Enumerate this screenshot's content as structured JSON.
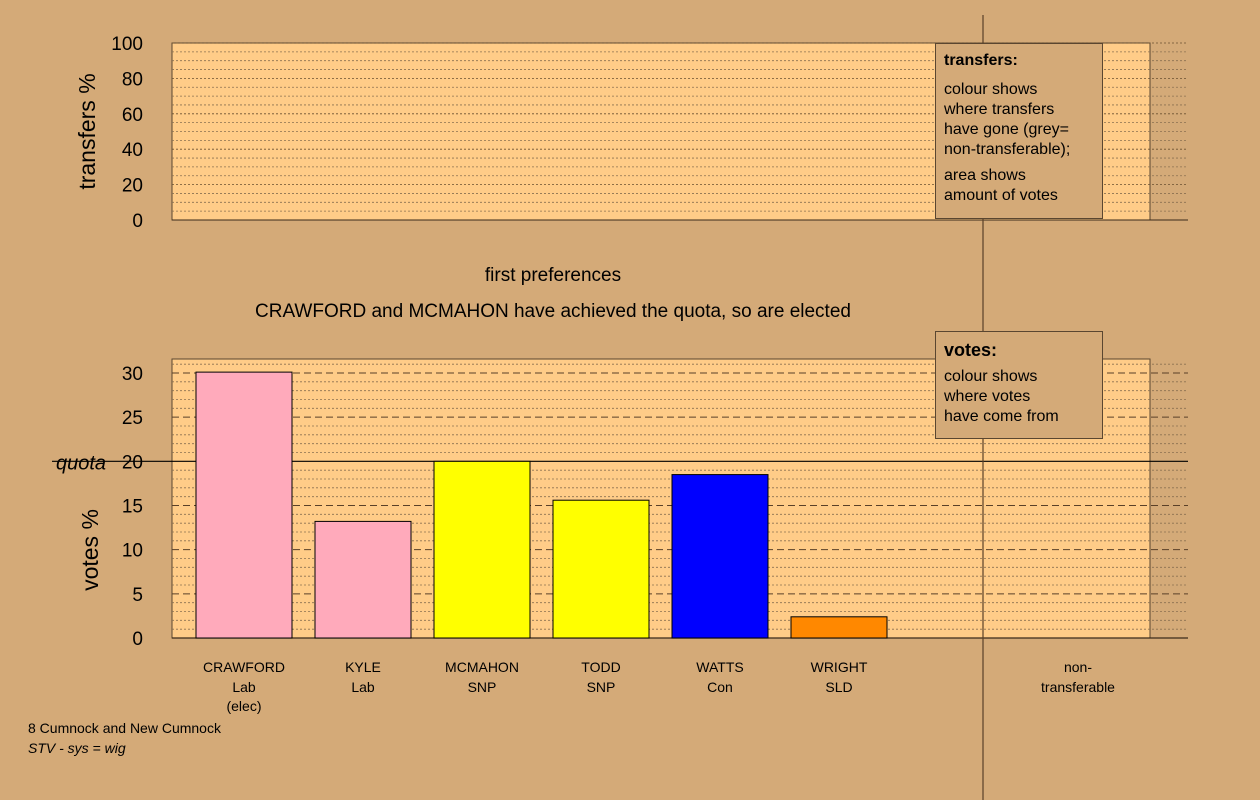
{
  "chart_data": {
    "type": "bar",
    "title": "first preferences",
    "subtitle": "CRAWFORD and MCMAHON have achieved the quota, so are elected",
    "quota_label": "quota",
    "quota": 20,
    "colors": {
      "background": "#D4AA78",
      "plot": "#FFCC88"
    },
    "top_panel": {
      "ylabel": "transfers %",
      "ylim": [
        0,
        100
      ],
      "ticks": [
        "0",
        "20",
        "40",
        "60",
        "80",
        "100"
      ],
      "legend": {
        "title": "transfers:",
        "lines1": [
          "colour shows",
          "where transfers",
          "have gone (grey=",
          "non-transferable);"
        ],
        "lines2": [
          "area shows",
          "amount of votes"
        ]
      }
    },
    "bottom_panel": {
      "ylabel": "votes %",
      "ylim": [
        0,
        31.5
      ],
      "ticks": [
        "0",
        "5",
        "10",
        "15",
        "20",
        "25",
        "30"
      ],
      "legend": {
        "title": "votes:",
        "lines": [
          "colour shows",
          "where votes",
          "have come from"
        ]
      }
    },
    "candidates": [
      {
        "name": "CRAWFORD",
        "party": "Lab",
        "status": "(elec)",
        "value": 30.1,
        "color": "#FFAABB"
      },
      {
        "name": "KYLE",
        "party": "Lab",
        "status": "",
        "value": 13.2,
        "color": "#FFAABB"
      },
      {
        "name": "MCMAHON",
        "party": "SNP",
        "status": "",
        "value": 20.0,
        "color": "#FFFF00"
      },
      {
        "name": "TODD",
        "party": "SNP",
        "status": "",
        "value": 15.6,
        "color": "#FFFF00"
      },
      {
        "name": "WATTS",
        "party": "Con",
        "status": "",
        "value": 18.5,
        "color": "#0000FF"
      },
      {
        "name": "WRIGHT",
        "party": "SLD",
        "status": "",
        "value": 2.4,
        "color": "#FF8800"
      }
    ],
    "nontransferable": {
      "label1": "non-",
      "label2": "transferable",
      "value": 0
    }
  },
  "footer": {
    "line1": "8 Cumnock and New Cumnock",
    "line2": "STV - sys = wig"
  }
}
